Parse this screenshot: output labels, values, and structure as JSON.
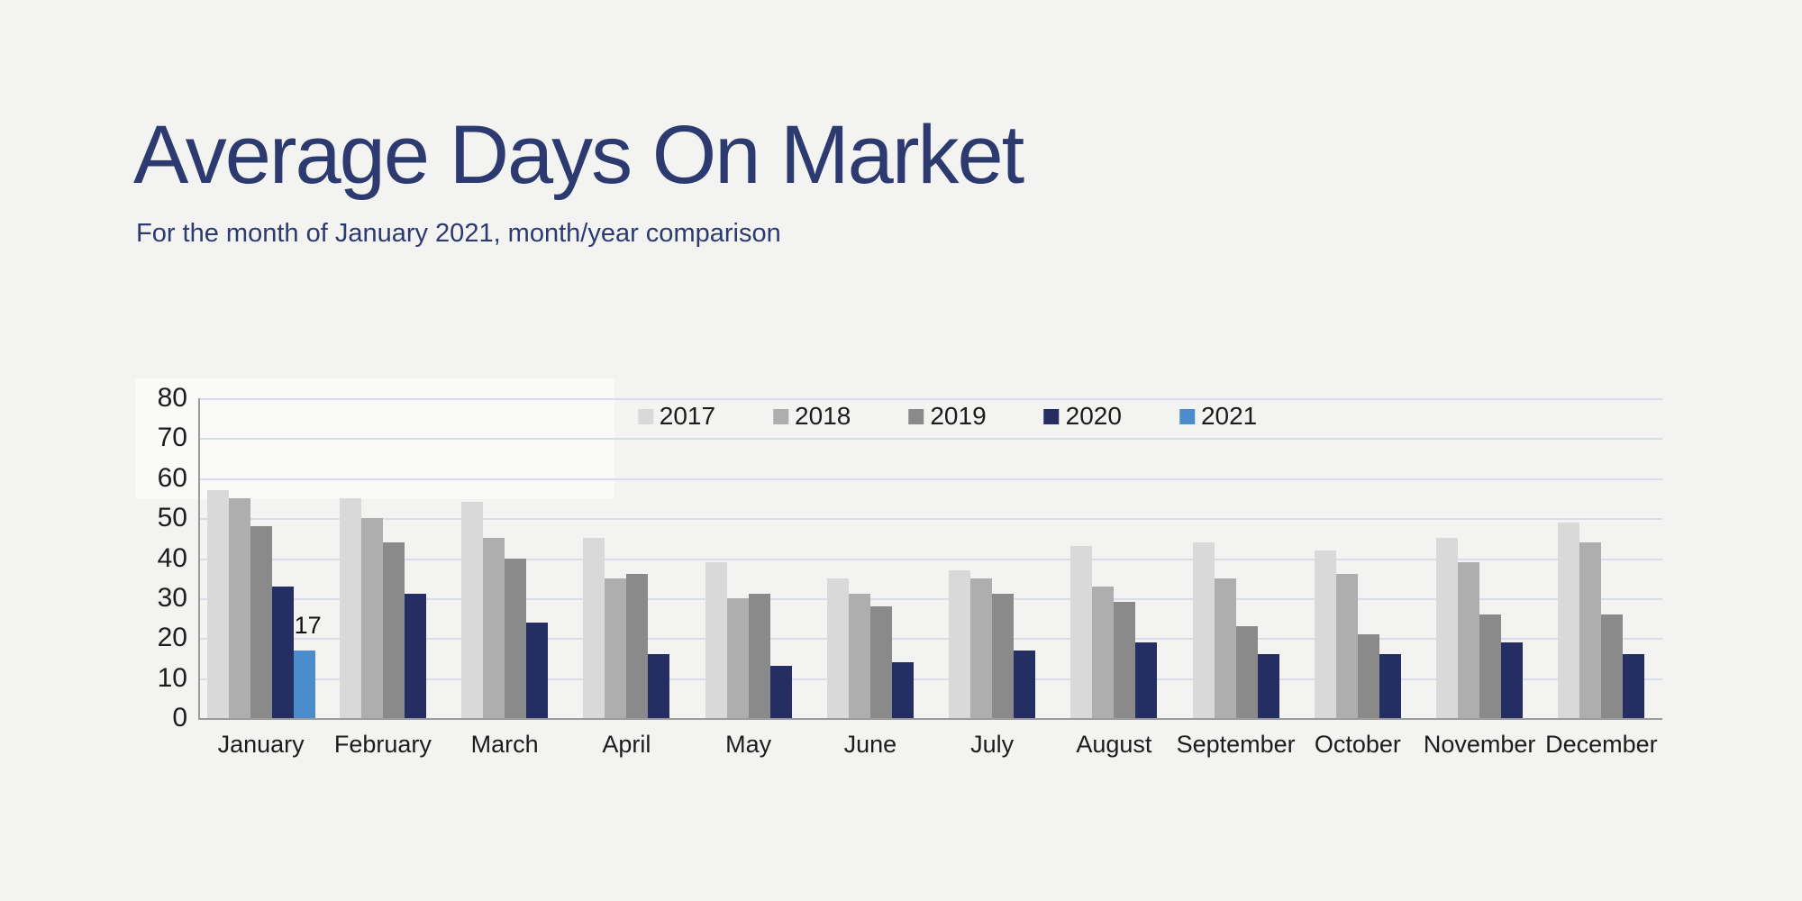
{
  "page": {
    "title": "Average Days On Market",
    "subtitle": "For the month of January 2021, month/year comparison"
  },
  "colors": {
    "background": "#f3f3f1",
    "title_text": "#2d3a70",
    "gridline": "#d9dde9",
    "axis_line": "#9b9b9b",
    "label_text": "#1c1c1c"
  },
  "chart_data": {
    "type": "bar",
    "title": "Average Days On Market",
    "xlabel": "",
    "ylabel": "",
    "categories": [
      "January",
      "February",
      "March",
      "April",
      "May",
      "June",
      "July",
      "August",
      "September",
      "October",
      "November",
      "December"
    ],
    "series": [
      {
        "name": "2017",
        "color": "#d9d9d9",
        "values": [
          57,
          55,
          54,
          45,
          39,
          35,
          37,
          43,
          44,
          42,
          45,
          49
        ]
      },
      {
        "name": "2018",
        "color": "#aeaeae",
        "values": [
          55,
          50,
          45,
          35,
          30,
          31,
          35,
          33,
          35,
          36,
          39,
          44
        ]
      },
      {
        "name": "2019",
        "color": "#8a8a8a",
        "values": [
          48,
          44,
          40,
          36,
          31,
          28,
          31,
          29,
          23,
          21,
          26,
          26
        ]
      },
      {
        "name": "2020",
        "color": "#252e63",
        "values": [
          33,
          31,
          24,
          16,
          13,
          14,
          17,
          19,
          16,
          16,
          19,
          16
        ]
      },
      {
        "name": "2021",
        "color": "#4b8ccd",
        "values": [
          17,
          null,
          null,
          null,
          null,
          null,
          null,
          null,
          null,
          null,
          null,
          null
        ]
      }
    ],
    "ylim": [
      0,
      80
    ],
    "yticks": [
      0,
      10,
      20,
      30,
      40,
      50,
      60,
      70,
      80
    ],
    "grid": true,
    "legend_position": "top-center",
    "data_labels": [
      {
        "series": "2021",
        "category": "January",
        "text": "17"
      }
    ]
  }
}
